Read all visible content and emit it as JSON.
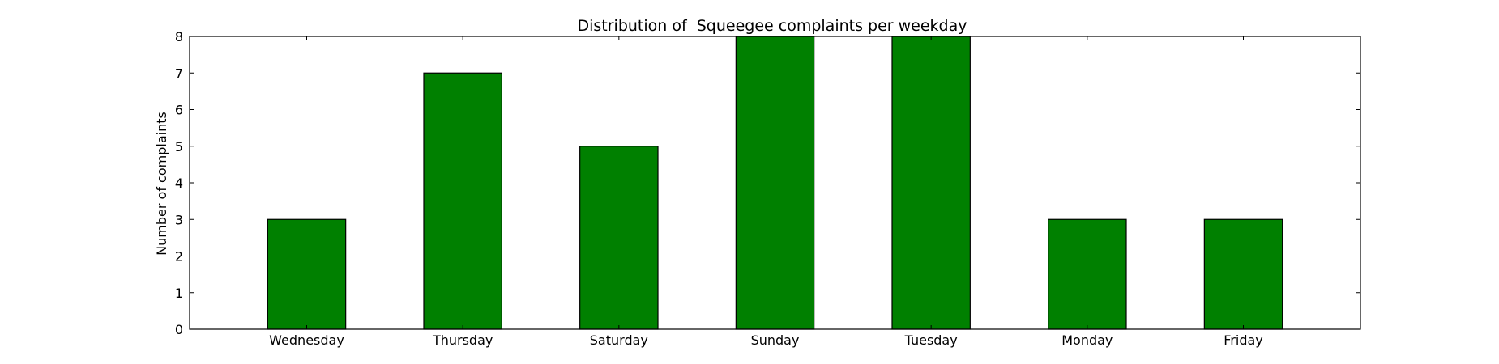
{
  "chart_data": {
    "type": "bar",
    "title": "Distribution of  Squeegee complaints per weekday",
    "xlabel": "",
    "ylabel": "Number of complaints",
    "categories": [
      "Wednesday",
      "Thursday",
      "Saturday",
      "Sunday",
      "Tuesday",
      "Monday",
      "Friday"
    ],
    "values": [
      3,
      7,
      5,
      8,
      8,
      3,
      3
    ],
    "ylim": [
      0,
      8
    ],
    "yticks": [
      "0",
      "1",
      "2",
      "3",
      "4",
      "5",
      "6",
      "7",
      "8"
    ],
    "grid": false,
    "legend": "none",
    "bar_color": "#008000",
    "edge_color": "#000000"
  }
}
